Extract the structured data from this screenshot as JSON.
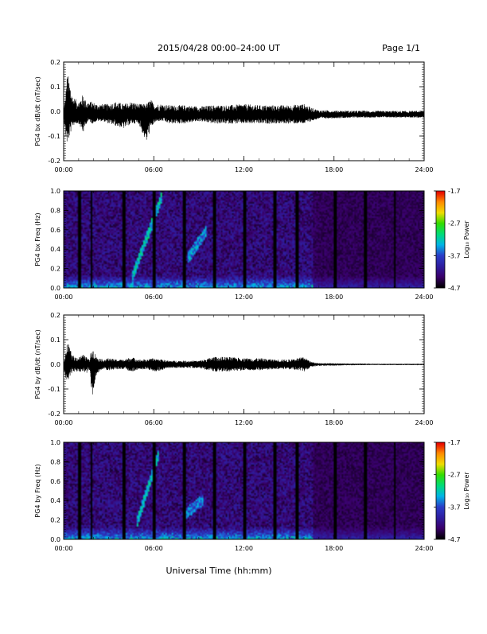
{
  "header": {
    "date_range": "2015/04/28  00:00–24:00 UT",
    "page": "Page 1/1"
  },
  "footer": {
    "xlabel": "Universal Time (hh:mm)"
  },
  "colors": {
    "trace": "#000000",
    "colormap": [
      "#000000",
      "#3a006a",
      "#2e1ea0",
      "#2a3ec8",
      "#00b4e6",
      "#00dc78",
      "#32dc00",
      "#f0dc00",
      "#ff8c00",
      "#e60000"
    ]
  },
  "chart_data": [
    {
      "type": "line",
      "name": "bx-dbdt",
      "ylabel": "PG4 bx dB/dt (nT/sec)",
      "x_unit": "hours UT",
      "xlim": [
        0,
        24
      ],
      "ylim": [
        -0.2,
        0.2
      ],
      "yticks": [
        "0.2",
        "0.1",
        "0.0",
        "-0.1",
        "-0.2"
      ],
      "yticks_values": [
        0.2,
        0.1,
        0.0,
        -0.1,
        -0.2
      ],
      "xticks": [
        "00:00",
        "06:00",
        "12:00",
        "18:00",
        "24:00"
      ],
      "envelope": {
        "x": [
          0,
          0.1,
          0.25,
          0.4,
          0.5,
          0.6,
          0.8,
          1.0,
          1.3,
          1.5,
          1.7,
          1.9,
          2.2,
          2.6,
          3.0,
          3.5,
          4.0,
          4.5,
          5.0,
          5.5,
          5.8,
          6.0,
          6.3,
          6.6,
          7.0,
          8.0,
          9.0,
          10.0,
          11.0,
          12.0,
          13.0,
          14.0,
          15.0,
          16.0,
          16.5,
          17.0,
          18.0,
          19.0,
          20.0,
          21.0,
          22.0,
          23.0,
          24.0
        ],
        "max": [
          0.01,
          0.05,
          0.16,
          0.12,
          0.09,
          0.06,
          0.05,
          0.04,
          0.07,
          0.04,
          0.04,
          0.04,
          0.03,
          0.03,
          0.03,
          0.04,
          0.03,
          0.04,
          0.03,
          0.03,
          0.05,
          0.03,
          0.03,
          0.03,
          0.025,
          0.025,
          0.02,
          0.025,
          0.025,
          0.03,
          0.025,
          0.025,
          0.025,
          0.03,
          0.015,
          0.005,
          0.004,
          0.003,
          0.003,
          0.002,
          0.002,
          0.002,
          0.002
        ],
        "min": [
          -0.01,
          -0.09,
          -0.14,
          -0.1,
          -0.08,
          -0.06,
          -0.05,
          -0.05,
          -0.09,
          -0.05,
          -0.04,
          -0.05,
          -0.04,
          -0.04,
          -0.05,
          -0.06,
          -0.07,
          -0.05,
          -0.05,
          -0.13,
          -0.07,
          -0.05,
          -0.04,
          -0.04,
          -0.05,
          -0.05,
          -0.04,
          -0.05,
          -0.05,
          -0.05,
          -0.05,
          -0.05,
          -0.05,
          -0.05,
          -0.04,
          -0.03,
          -0.028,
          -0.026,
          -0.025,
          -0.025,
          -0.025,
          -0.025,
          -0.025
        ]
      },
      "baseline": -0.015
    },
    {
      "type": "heatmap",
      "name": "bx-spectrogram",
      "ylabel": "PG4 bx Freq (Hz)",
      "xlim": [
        0,
        24
      ],
      "ylim": [
        0,
        1.0
      ],
      "yticks": [
        "1.0",
        "0.8",
        "0.6",
        "0.4",
        "0.2",
        "0.0"
      ],
      "yticks_values": [
        1.0,
        0.8,
        0.6,
        0.4,
        0.2,
        0.0
      ],
      "xticks": [
        "00:00",
        "06:00",
        "12:00",
        "18:00",
        "24:00"
      ],
      "colorbar": {
        "label": "Log₁₀ Power",
        "ticks": [
          "-1.7",
          "-2.7",
          "-3.7",
          "-4.7"
        ],
        "range": [
          -4.7,
          -1.7
        ]
      },
      "gaps_hours": [
        1.0,
        1.8,
        4.0,
        6.0,
        8.0,
        10.0,
        12.0,
        14.0,
        15.5,
        18.0,
        20.0,
        22.0
      ],
      "features": [
        {
          "t0": 4.5,
          "f0": 0.1,
          "t1": 6.5,
          "f1": 0.95,
          "level": -3.0
        },
        {
          "t0": 8.2,
          "f0": 0.3,
          "t1": 9.5,
          "f1": 0.6,
          "level": -3.2
        }
      ]
    },
    {
      "type": "line",
      "name": "by-dbdt",
      "ylabel": "PG4 by dB/dt (nT/sec)",
      "x_unit": "hours UT",
      "xlim": [
        0,
        24
      ],
      "ylim": [
        -0.2,
        0.2
      ],
      "yticks": [
        "0.2",
        "0.1",
        "0.0",
        "-0.1",
        "-0.2"
      ],
      "yticks_values": [
        0.2,
        0.1,
        0.0,
        -0.1,
        -0.2
      ],
      "xticks": [
        "00:00",
        "06:00",
        "12:00",
        "18:00",
        "24:00"
      ],
      "envelope": {
        "x": [
          0,
          0.1,
          0.25,
          0.4,
          0.5,
          0.7,
          1.0,
          1.3,
          1.5,
          1.7,
          1.9,
          2.2,
          2.6,
          3.0,
          3.5,
          4.0,
          4.5,
          5.0,
          5.5,
          6.0,
          6.5,
          7.0,
          8.0,
          9.0,
          10.0,
          11.0,
          12.0,
          13.0,
          14.0,
          15.0,
          16.0,
          16.5,
          17.0,
          18.0,
          19.0,
          20.0,
          21.0,
          22.0,
          23.0,
          24.0
        ],
        "max": [
          0.01,
          0.03,
          0.09,
          0.07,
          0.05,
          0.03,
          0.03,
          0.04,
          0.03,
          0.02,
          0.07,
          0.03,
          0.02,
          0.025,
          0.02,
          0.02,
          0.03,
          0.02,
          0.02,
          0.025,
          0.02,
          0.015,
          0.015,
          0.015,
          0.03,
          0.03,
          0.025,
          0.025,
          0.02,
          0.02,
          0.03,
          0.01,
          0.005,
          0.004,
          0.003,
          0.003,
          0.002,
          0.002,
          0.002,
          0.002
        ],
        "min": [
          -0.01,
          -0.05,
          -0.07,
          -0.05,
          -0.04,
          -0.03,
          -0.03,
          -0.03,
          -0.04,
          -0.02,
          -0.13,
          -0.04,
          -0.02,
          -0.025,
          -0.02,
          -0.02,
          -0.03,
          -0.02,
          -0.02,
          -0.03,
          -0.025,
          -0.015,
          -0.015,
          -0.015,
          -0.03,
          -0.03,
          -0.025,
          -0.025,
          -0.02,
          -0.02,
          -0.03,
          -0.01,
          -0.006,
          -0.005,
          -0.004,
          -0.003,
          -0.003,
          -0.003,
          -0.003,
          -0.003
        ]
      },
      "baseline": 0.0
    },
    {
      "type": "heatmap",
      "name": "by-spectrogram",
      "ylabel": "PG4 by Freq (Hz)",
      "xlim": [
        0,
        24
      ],
      "ylim": [
        0,
        1.0
      ],
      "yticks": [
        "1.0",
        "0.8",
        "0.6",
        "0.4",
        "0.2",
        "0.0"
      ],
      "yticks_values": [
        1.0,
        0.8,
        0.6,
        0.4,
        0.2,
        0.0
      ],
      "xticks": [
        "00:00",
        "06:00",
        "12:00",
        "18:00",
        "24:00"
      ],
      "colorbar": {
        "label": "Log₁₀ Power",
        "ticks": [
          "-1.7",
          "-2.7",
          "-3.7",
          "-4.7"
        ],
        "range": [
          -4.7,
          -1.7
        ]
      },
      "gaps_hours": [
        1.0,
        1.8,
        4.0,
        6.0,
        8.0,
        10.0,
        12.0,
        14.0,
        15.5,
        18.0,
        20.0,
        22.0
      ],
      "features": [
        {
          "t0": 4.8,
          "f0": 0.15,
          "t1": 6.3,
          "f1": 0.9,
          "level": -3.0
        },
        {
          "t0": 8.0,
          "f0": 0.25,
          "t1": 9.2,
          "f1": 0.4,
          "level": -3.3
        }
      ]
    }
  ]
}
